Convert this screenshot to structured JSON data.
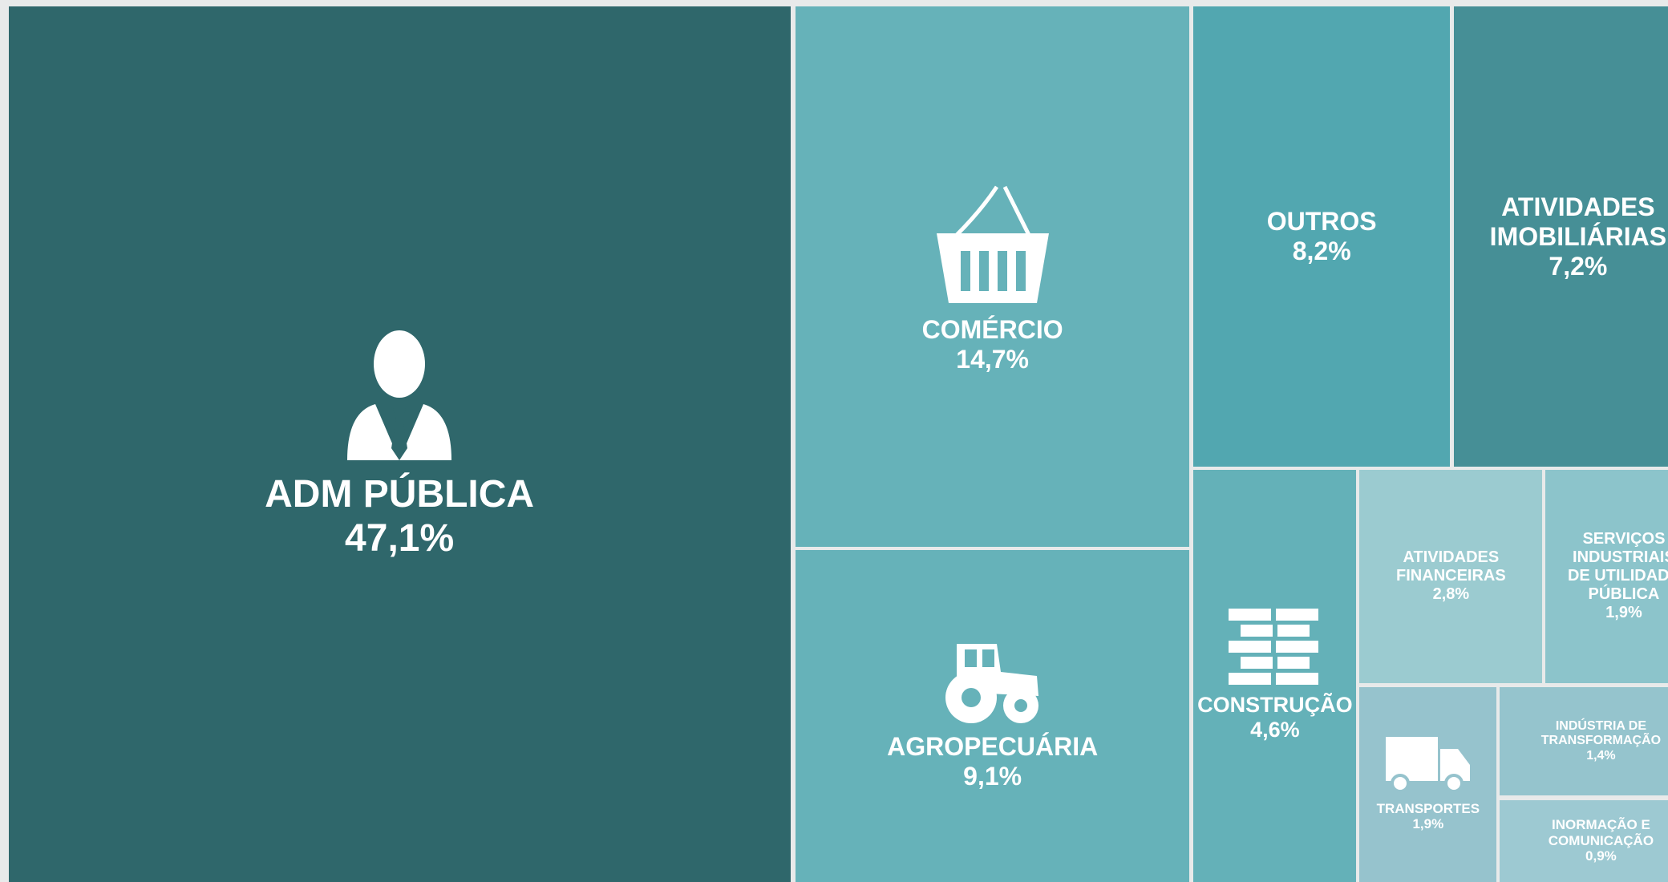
{
  "chart_data": {
    "type": "treemap",
    "categories": [
      "ADM PÚBLICA",
      "COMÉRCIO",
      "AGROPECUÁRIA",
      "OUTROS",
      "ATIVIDADES IMOBILIÁRIAS",
      "CONSTRUÇÃO",
      "ATIVIDADES FINANCEIRAS",
      "SERVIÇOS INDUSTRIAIS DE UTILIDADE PÚBLICA",
      "TRANSPORTES",
      "INDÚSTRIA DE TRANSFORMAÇÃO",
      "INORMAÇÃO E COMUNICAÇÃO"
    ],
    "values": [
      47.1,
      14.7,
      9.1,
      8.2,
      7.2,
      4.6,
      2.8,
      1.9,
      1.9,
      1.4,
      0.9
    ],
    "value_labels": [
      "47,1%",
      "14,7%",
      "9,1%",
      "8,2%",
      "7,2%",
      "4,6%",
      "2,8%",
      "1,9%",
      "1,9%",
      "1,4%",
      "0,9%"
    ],
    "colors": [
      "#2f676b",
      "#66b2b9",
      "#66b2b9",
      "#52a7b0",
      "#468f96",
      "#64b1b8",
      "#9bcbd0",
      "#8cc4cb",
      "#96c3cd",
      "#95c4cd",
      "#9dc9d2"
    ]
  }
}
